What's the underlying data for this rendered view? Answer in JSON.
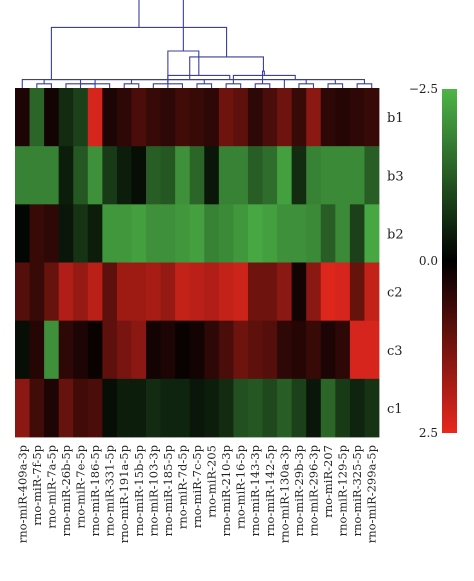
{
  "chart_data": {
    "type": "heatmap",
    "columns": [
      "rno-miR-409a-3p",
      "rno-miR-7f-5p",
      "rno-miR-7a-5p",
      "rno-miR-26b-5p",
      "rno-miR-7e-5p",
      "rno-miR-186-5p",
      "rno-miR-331-5p",
      "rno-miR-191a-5p",
      "rno-miR-15b-5p",
      "rno-miR-103-3p",
      "rno-miR-185-5p",
      "rno-miR-7d-5p",
      "rno-miR-7c-5p",
      "rno-miR-205",
      "rno-miR-210-3p",
      "rno-miR-16-5p",
      "rno-miR-143-3p",
      "rno-miR-142-5p",
      "rno-miR-130a-3p",
      "rno-miR-29b-3p",
      "rno-miR-296-3p",
      "rno-miR-207",
      "rno-miR-129-5p",
      "rno-miR-325-5p",
      "rno-miR-299a-5p"
    ],
    "rows": [
      "b1",
      "b3",
      "b2",
      "c2",
      "c3",
      "c1"
    ],
    "values": [
      [
        0.3,
        -1.4,
        0.2,
        -0.6,
        -0.9,
        2.3,
        0.3,
        0.5,
        0.8,
        0.6,
        0.5,
        0.7,
        0.6,
        0.5,
        1.2,
        1.0,
        0.5,
        0.8,
        1.2,
        0.6,
        1.5,
        0.5,
        0.4,
        0.5,
        0.6
      ],
      [
        -1.8,
        -1.8,
        -1.8,
        -0.4,
        -1.2,
        -2.0,
        -0.8,
        -0.4,
        -0.2,
        -1.3,
        -1.2,
        -2.0,
        -1.4,
        -0.3,
        -1.8,
        -1.8,
        -1.3,
        -1.5,
        -2.2,
        -0.6,
        -1.8,
        -1.9,
        -1.9,
        -1.9,
        -1.3
      ],
      [
        -0.1,
        0.6,
        0.5,
        -0.3,
        -0.7,
        -0.4,
        -2.1,
        -2.1,
        -2.2,
        -2.0,
        -2.0,
        -2.1,
        -2.2,
        -1.8,
        -1.9,
        -2.1,
        -2.3,
        -2.2,
        -2.0,
        -2.0,
        -1.9,
        -1.3,
        -1.9,
        -0.9,
        -2.3
      ],
      [
        0.9,
        0.6,
        1.1,
        1.9,
        1.6,
        2.0,
        1.0,
        1.7,
        1.7,
        1.8,
        1.6,
        2.1,
        2.0,
        1.9,
        2.1,
        2.2,
        1.2,
        1.2,
        1.5,
        0.2,
        1.5,
        2.4,
        2.3,
        1.1,
        2.1
      ],
      [
        -0.2,
        0.4,
        -2.0,
        0.5,
        0.3,
        0.1,
        1.0,
        1.3,
        1.5,
        0.2,
        0.3,
        0.1,
        0.2,
        0.5,
        0.8,
        1.2,
        1.0,
        0.9,
        0.5,
        0.4,
        0.6,
        0.3,
        0.5,
        2.3,
        2.3
      ],
      [
        1.5,
        0.7,
        0.3,
        1.1,
        0.7,
        0.8,
        -0.2,
        -0.4,
        -0.4,
        -0.6,
        -0.5,
        -0.5,
        -0.3,
        -0.4,
        -0.6,
        -1.1,
        -1.2,
        -1.0,
        -1.3,
        -0.9,
        -0.3,
        -1.4,
        -0.8,
        -0.5,
        -0.7
      ]
    ],
    "colorscale": {
      "min": -2.5,
      "mid": 0.0,
      "max": 2.5,
      "low_color": "#4db548",
      "mid_color": "#000000",
      "high_color": "#e8281e"
    },
    "colorbar_ticks": [
      "−2.5",
      "0.0",
      "2.5"
    ],
    "colorbar_tick_values": [
      -2.5,
      0.0,
      2.5
    ],
    "dendrogram_color": "#3a3f9e",
    "dendrogram": [
      [
        1,
        2
      ],
      [
        4,
        6
      ],
      [
        7,
        8
      ],
      [
        9,
        11
      ],
      [
        12,
        13
      ],
      [
        23,
        24
      ],
      [
        21,
        22
      ],
      [
        16,
        17
      ],
      [
        26,
        30
      ],
      [
        27,
        29
      ],
      [
        28,
        33
      ],
      [
        14,
        15
      ],
      [
        19,
        20
      ],
      [
        18,
        37
      ],
      [
        3,
        5
      ],
      [
        36,
        38
      ],
      [
        25,
        31
      ],
      [
        0,
        39
      ],
      [
        32,
        40
      ],
      [
        10,
        34
      ],
      [
        41,
        43
      ],
      [
        35,
        44
      ],
      [
        42,
        45
      ],
      [
        46,
        47
      ]
    ]
  }
}
